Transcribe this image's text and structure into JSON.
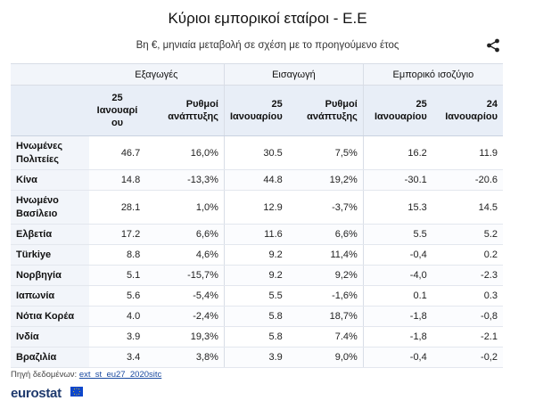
{
  "title": "Κύριοι εμπορικοί εταίροι - Ε.Ε",
  "subtitle": "Βη €, μηνιαία μεταβολή σε σχέση με το προηγούμενο έτος",
  "groups": [
    "Εξαγωγές",
    "Εισαγωγή",
    "Εμπορικό ισοζύγιο"
  ],
  "columns": [
    "25 Ιανουαρί ου",
    "Ρυθμοί ανάπτυξης",
    "25 Ιανουαρίου",
    "Ρυθμοί ανάπτυξης",
    "25 Ιανουαρίου",
    "24 Ιανουαρίου"
  ],
  "rows": [
    [
      "Ηνωμένες Πολιτείες",
      "46.7",
      "16,0%",
      "30.5",
      "7,5%",
      "16.2",
      "11.9"
    ],
    [
      "Κίνα",
      "14.8",
      "-13,3%",
      "44.8",
      "19,2%",
      "-30.1",
      "-20.6"
    ],
    [
      "Ηνωμένο Βασίλειο",
      "28.1",
      "1,0%",
      "12.9",
      "-3,7%",
      "15.3",
      "14.5"
    ],
    [
      "Ελβετία",
      "17.2",
      "6,6%",
      "11.6",
      "6,6%",
      "5.5",
      "5.2"
    ],
    [
      "Türkiye",
      "8.8",
      "4,6%",
      "9.2",
      "11,4%",
      "-0,4",
      "0.2"
    ],
    [
      "Νορβηγία",
      "5.1",
      "-15,7%",
      "9.2",
      "9,2%",
      "-4,0",
      "-2.3"
    ],
    [
      "Ιαπωνία",
      "5.6",
      "-5,4%",
      "5.5",
      "-1,6%",
      "0.1",
      "0.3"
    ],
    [
      "Νότια Κορέα",
      "4.0",
      "-2,4%",
      "5.8",
      "18,7%",
      "-1,8",
      "-0,8"
    ],
    [
      "Ινδία",
      "3.9",
      "19,3%",
      "5.8",
      "7.4%",
      "-1,8",
      "-2.1"
    ],
    [
      "Βραζιλία",
      "3.4",
      "3,8%",
      "3.9",
      "9,0%",
      "-0,4",
      "-0,2"
    ]
  ],
  "source_label": "Πηγή δεδομένων:",
  "source_link": "ext_st_eu27_2020sitc",
  "logo_text": "eurostat",
  "icons": {
    "share": "share-icon",
    "flag": "eu-flag-icon"
  },
  "colors": {
    "header_bg": "#e8eef7",
    "group_bg": "#f2f5fa",
    "link": "#1a4aa0",
    "logo": "#1f3a6e",
    "flag": "#0e47cb"
  }
}
